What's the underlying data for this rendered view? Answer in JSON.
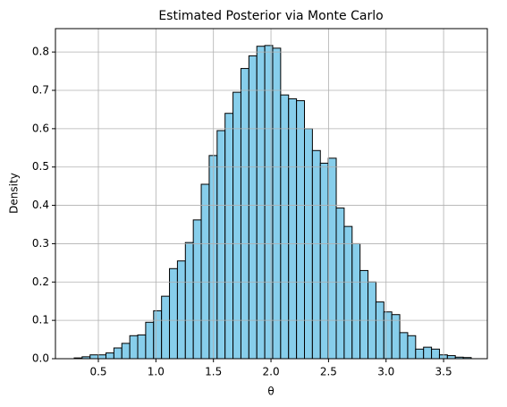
{
  "chart_data": {
    "type": "histogram",
    "title": "Estimated Posterior via Monte Carlo",
    "x_label": "θ",
    "y_label": "Density",
    "bins": [
      0.29,
      0.359,
      0.428,
      0.497,
      0.566,
      0.635,
      0.704,
      0.773,
      0.842,
      0.911,
      0.98,
      1.049,
      1.118,
      1.187,
      1.256,
      1.325,
      1.394,
      1.463,
      1.532,
      1.601,
      1.67,
      1.739,
      1.808,
      1.877,
      1.946,
      2.015,
      2.084,
      2.153,
      2.222,
      2.291,
      2.36,
      2.429,
      2.498,
      2.567,
      2.636,
      2.705,
      2.774,
      2.843,
      2.912,
      2.981,
      3.05,
      3.119,
      3.188,
      3.257,
      3.326,
      3.395,
      3.464,
      3.533,
      3.602,
      3.671,
      3.74
    ],
    "values": [
      0.002,
      0.005,
      0.01,
      0.01,
      0.015,
      0.028,
      0.04,
      0.06,
      0.062,
      0.095,
      0.125,
      0.163,
      0.235,
      0.255,
      0.303,
      0.362,
      0.455,
      0.53,
      0.595,
      0.64,
      0.695,
      0.757,
      0.79,
      0.815,
      0.817,
      0.81,
      0.688,
      0.678,
      0.673,
      0.6,
      0.543,
      0.51,
      0.523,
      0.393,
      0.345,
      0.3,
      0.23,
      0.2,
      0.148,
      0.122,
      0.115,
      0.068,
      0.06,
      0.025,
      0.03,
      0.025,
      0.01,
      0.008,
      0.004,
      0.003
    ],
    "color": "#87ceeb",
    "edgecolor": "#000000",
    "xlim": [
      0.127,
      3.88
    ],
    "ylim": [
      0,
      0.861
    ],
    "xticks": [
      0.5,
      {
        "value": 1,
        "label": "1.0"
      },
      1.5,
      {
        "value": 2,
        "label": "2.0"
      },
      2.5,
      {
        "value": 3,
        "label": "3.0"
      },
      3.5
    ],
    "yticks": [
      {
        "value": 0,
        "label": "0.0"
      },
      0.1,
      0.2,
      0.3,
      0.4,
      0.5,
      0.6,
      0.7,
      0.8
    ],
    "grid": true
  }
}
